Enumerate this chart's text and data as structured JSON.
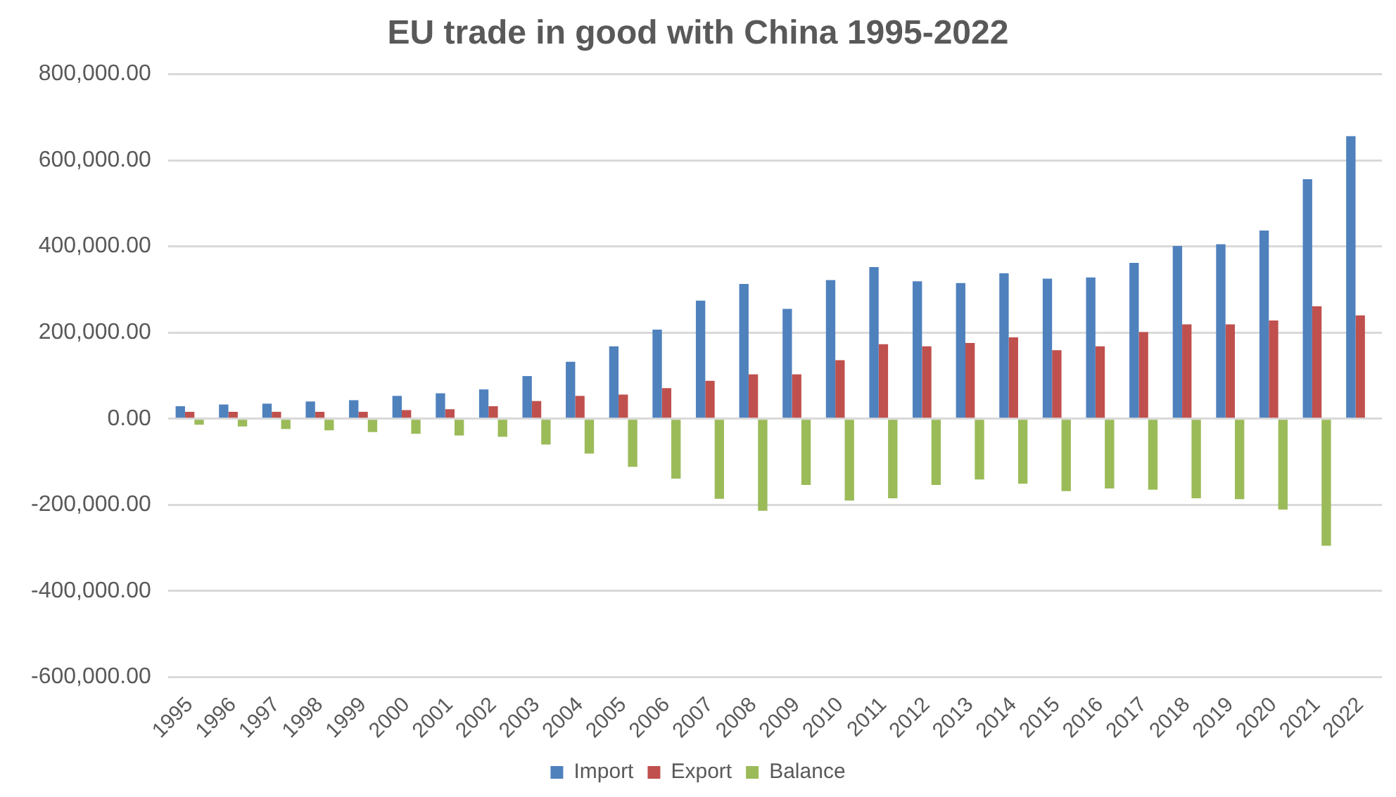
{
  "chart_data": {
    "type": "bar",
    "title": "EU trade in good with China 1995-2022",
    "categories": [
      "1995",
      "1996",
      "1997",
      "1998",
      "1999",
      "2000",
      "2001",
      "2002",
      "2003",
      "2004",
      "2005",
      "2006",
      "2007",
      "2008",
      "2009",
      "2010",
      "2011",
      "2012",
      "2013",
      "2014",
      "2015",
      "2016",
      "2017",
      "2018",
      "2019",
      "2020",
      "2021",
      "2022"
    ],
    "series": [
      {
        "name": "Import",
        "color": "#4f81bd",
        "values": [
          29000,
          33000,
          35000,
          40000,
          43000,
          53000,
          59000,
          68000,
          99000,
          132000,
          168000,
          207000,
          274000,
          313000,
          255000,
          322000,
          352000,
          319000,
          315000,
          338000,
          325000,
          328000,
          362000,
          401000,
          405000,
          437000,
          556000,
          656000
        ]
      },
      {
        "name": "Export",
        "color": "#c0504d",
        "values": [
          16000,
          16000,
          16000,
          16000,
          16000,
          20000,
          22000,
          29000,
          41000,
          53000,
          56000,
          71000,
          88000,
          103000,
          103000,
          136000,
          173000,
          168000,
          176000,
          189000,
          159000,
          168000,
          201000,
          219000,
          219000,
          228000,
          261000,
          240000
        ]
      },
      {
        "name": "Balance",
        "color": "#9bbb59",
        "values": [
          -14000,
          -18000,
          -24000,
          -27000,
          -31000,
          -35000,
          -39000,
          -42000,
          -60000,
          -81000,
          -112000,
          -139000,
          -186000,
          -214000,
          -154000,
          -190000,
          -185000,
          -154000,
          -141000,
          -151000,
          -168000,
          -162000,
          -165000,
          -185000,
          -187000,
          -211000,
          -295000,
          null
        ]
      }
    ],
    "ylim": [
      -600000,
      800000
    ],
    "yticks": [
      {
        "value": -600000,
        "label": "-600,000.00"
      },
      {
        "value": -400000,
        "label": "-400,000.00"
      },
      {
        "value": -200000,
        "label": "-200,000.00"
      },
      {
        "value": 0,
        "label": "0.00"
      },
      {
        "value": 200000,
        "label": "200,000.00"
      },
      {
        "value": 400000,
        "label": "400,000.00"
      },
      {
        "value": 600000,
        "label": "600,000.00"
      },
      {
        "value": 800000,
        "label": "800,000.00"
      }
    ],
    "grid": "y",
    "legend": "bottom"
  }
}
